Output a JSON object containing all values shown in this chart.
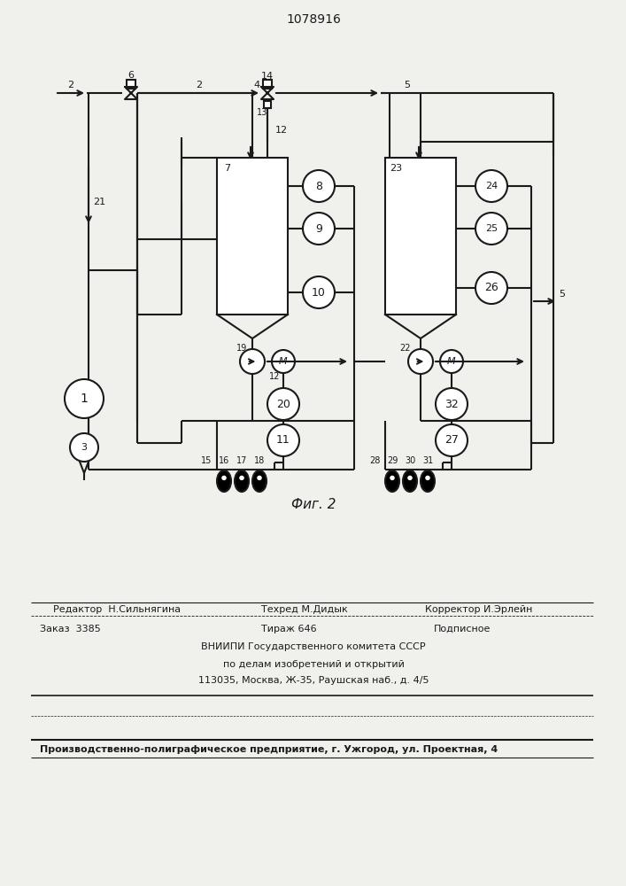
{
  "title": "1078916",
  "fig_label": "Фиг. 2",
  "bg_color": "#f0f0ec",
  "line_color": "#1a1a1a",
  "footer": {
    "line1_left": "Редактор  Н.Сильнягина",
    "line1_mid": "Техред М.Дидык",
    "line1_right": "Корректор И.Эрлейн",
    "line2_left": "Заказ  3385",
    "line2_mid": "Тираж 646",
    "line2_right": "Подписное",
    "line3": "ВНИИПИ Государственного комитета СССР",
    "line4": "по делам изобретений и открытий",
    "line5": "113035, Москва, Ж-35, Раушская наб., д. 4/5",
    "line6": "Производственно-полиграфическое предприятие, г. Ужгород, ул. Проектная, 4"
  }
}
